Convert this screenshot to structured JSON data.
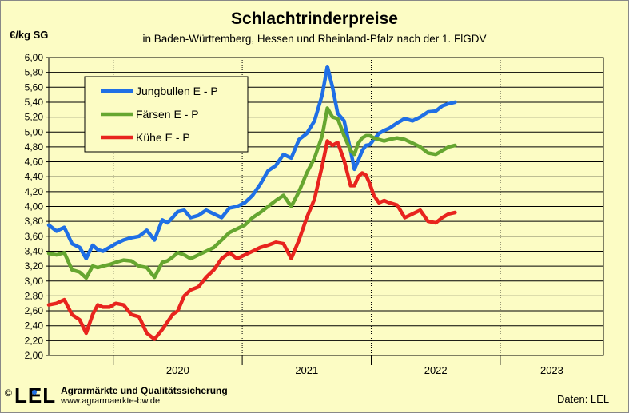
{
  "header": {
    "title": "Schlachtrinderpreise",
    "subtitle": "in Baden-Württemberg, Hessen und Rheinland-Pfalz  nach der 1. FlGDV",
    "unit": "€/kg SG"
  },
  "footer": {
    "copyright": "©",
    "logo_text": "LEL",
    "org": "Agrarmärkte und Qualitätssicherung",
    "website": "www.agrarmaerkte-bw.de",
    "source": "Daten:  LEL"
  },
  "chart_data": {
    "type": "line",
    "title": "Schlachtrinderpreise",
    "ylabel": "€/kg SG",
    "xlabel": "",
    "ylim": [
      2.0,
      6.0
    ],
    "y_ticks": [
      "2,00",
      "2,20",
      "2,40",
      "2,60",
      "2,80",
      "3,00",
      "3,20",
      "3,40",
      "3,60",
      "3,80",
      "4,00",
      "4,20",
      "4,40",
      "4,60",
      "4,80",
      "5,00",
      "5,20",
      "5,40",
      "5,60",
      "5,80",
      "6,00"
    ],
    "x_range": [
      2019.5,
      2023.8
    ],
    "x_year_dividers": [
      2020.0,
      2021.0,
      2022.0,
      2023.0
    ],
    "x_labels": [
      {
        "label": "2020",
        "x": 2020.0
      },
      {
        "label": "2021",
        "x": 2021.0
      },
      {
        "label": "2022",
        "x": 2022.0
      },
      {
        "label": "2023",
        "x": 2023.0
      }
    ],
    "grid": true,
    "legend": "top-left",
    "series": [
      {
        "name": "Jungbullen E - P",
        "color": "#1f6fe5",
        "x": [
          2019.5,
          2019.56,
          2019.62,
          2019.68,
          2019.74,
          2019.79,
          2019.84,
          2019.88,
          2019.92,
          2019.97,
          2020.02,
          2020.08,
          2020.14,
          2020.2,
          2020.26,
          2020.32,
          2020.38,
          2020.42,
          2020.46,
          2020.5,
          2020.55,
          2020.6,
          2020.66,
          2020.72,
          2020.78,
          2020.84,
          2020.9,
          2020.96,
          2021.02,
          2021.08,
          2021.14,
          2021.2,
          2021.26,
          2021.32,
          2021.38,
          2021.44,
          2021.5,
          2021.56,
          2021.62,
          2021.66,
          2021.7,
          2021.74,
          2021.79,
          2021.84,
          2021.87,
          2021.9,
          2021.93,
          2021.96,
          2021.99,
          2022.02,
          2022.06,
          2022.1,
          2022.14,
          2022.2,
          2022.26,
          2022.32,
          2022.38,
          2022.44,
          2022.5,
          2022.55,
          2022.6,
          2022.65
        ],
        "values": [
          3.75,
          3.67,
          3.72,
          3.5,
          3.45,
          3.3,
          3.48,
          3.42,
          3.4,
          3.45,
          3.5,
          3.55,
          3.58,
          3.6,
          3.68,
          3.55,
          3.82,
          3.78,
          3.85,
          3.93,
          3.95,
          3.85,
          3.88,
          3.95,
          3.9,
          3.85,
          3.98,
          4.0,
          4.05,
          4.15,
          4.3,
          4.48,
          4.55,
          4.7,
          4.65,
          4.9,
          4.98,
          5.15,
          5.5,
          5.88,
          5.6,
          5.25,
          5.15,
          4.75,
          4.5,
          4.62,
          4.75,
          4.82,
          4.83,
          4.9,
          4.98,
          5.02,
          5.05,
          5.12,
          5.18,
          5.15,
          5.2,
          5.27,
          5.28,
          5.35,
          5.38,
          5.4
        ]
      },
      {
        "name": "Färsen E - P",
        "color": "#66a630",
        "x": [
          2019.5,
          2019.56,
          2019.62,
          2019.68,
          2019.74,
          2019.79,
          2019.84,
          2019.88,
          2019.92,
          2019.97,
          2020.02,
          2020.08,
          2020.14,
          2020.2,
          2020.26,
          2020.32,
          2020.38,
          2020.42,
          2020.46,
          2020.5,
          2020.55,
          2020.6,
          2020.66,
          2020.72,
          2020.78,
          2020.84,
          2020.9,
          2020.96,
          2021.02,
          2021.08,
          2021.14,
          2021.2,
          2021.26,
          2021.32,
          2021.38,
          2021.44,
          2021.5,
          2021.56,
          2021.62,
          2021.66,
          2021.7,
          2021.74,
          2021.79,
          2021.84,
          2021.87,
          2021.9,
          2021.93,
          2021.96,
          2021.99,
          2022.02,
          2022.06,
          2022.1,
          2022.14,
          2022.2,
          2022.26,
          2022.32,
          2022.38,
          2022.44,
          2022.5,
          2022.55,
          2022.6,
          2022.65
        ],
        "values": [
          3.37,
          3.35,
          3.38,
          3.15,
          3.12,
          3.04,
          3.2,
          3.18,
          3.2,
          3.22,
          3.25,
          3.28,
          3.27,
          3.2,
          3.18,
          3.05,
          3.25,
          3.27,
          3.32,
          3.38,
          3.35,
          3.3,
          3.35,
          3.4,
          3.45,
          3.55,
          3.65,
          3.7,
          3.75,
          3.85,
          3.92,
          4.0,
          4.08,
          4.15,
          4.0,
          4.2,
          4.45,
          4.65,
          4.95,
          5.32,
          5.2,
          5.18,
          4.95,
          4.75,
          4.7,
          4.85,
          4.92,
          4.95,
          4.95,
          4.92,
          4.9,
          4.88,
          4.9,
          4.92,
          4.9,
          4.85,
          4.8,
          4.72,
          4.7,
          4.75,
          4.8,
          4.82
        ]
      },
      {
        "name": "Kühe E - P",
        "color": "#e8241e",
        "x": [
          2019.5,
          2019.56,
          2019.62,
          2019.68,
          2019.74,
          2019.79,
          2019.84,
          2019.88,
          2019.92,
          2019.97,
          2020.02,
          2020.08,
          2020.14,
          2020.2,
          2020.26,
          2020.32,
          2020.38,
          2020.42,
          2020.46,
          2020.5,
          2020.55,
          2020.6,
          2020.66,
          2020.72,
          2020.78,
          2020.84,
          2020.9,
          2020.96,
          2021.02,
          2021.08,
          2021.14,
          2021.2,
          2021.26,
          2021.32,
          2021.38,
          2021.44,
          2021.5,
          2021.56,
          2021.62,
          2021.66,
          2021.7,
          2021.74,
          2021.79,
          2021.84,
          2021.87,
          2021.9,
          2021.93,
          2021.96,
          2021.99,
          2022.02,
          2022.06,
          2022.1,
          2022.14,
          2022.2,
          2022.26,
          2022.32,
          2022.38,
          2022.44,
          2022.5,
          2022.55,
          2022.6,
          2022.65
        ],
        "values": [
          2.68,
          2.7,
          2.75,
          2.55,
          2.48,
          2.3,
          2.55,
          2.68,
          2.65,
          2.65,
          2.7,
          2.68,
          2.55,
          2.52,
          2.3,
          2.22,
          2.35,
          2.45,
          2.55,
          2.6,
          2.8,
          2.88,
          2.92,
          3.05,
          3.15,
          3.3,
          3.38,
          3.3,
          3.35,
          3.4,
          3.45,
          3.48,
          3.52,
          3.5,
          3.3,
          3.55,
          3.85,
          4.1,
          4.55,
          4.88,
          4.82,
          4.86,
          4.62,
          4.28,
          4.28,
          4.4,
          4.45,
          4.42,
          4.3,
          4.15,
          4.05,
          4.08,
          4.05,
          4.02,
          3.85,
          3.9,
          3.95,
          3.8,
          3.78,
          3.85,
          3.9,
          3.92
        ]
      }
    ]
  }
}
